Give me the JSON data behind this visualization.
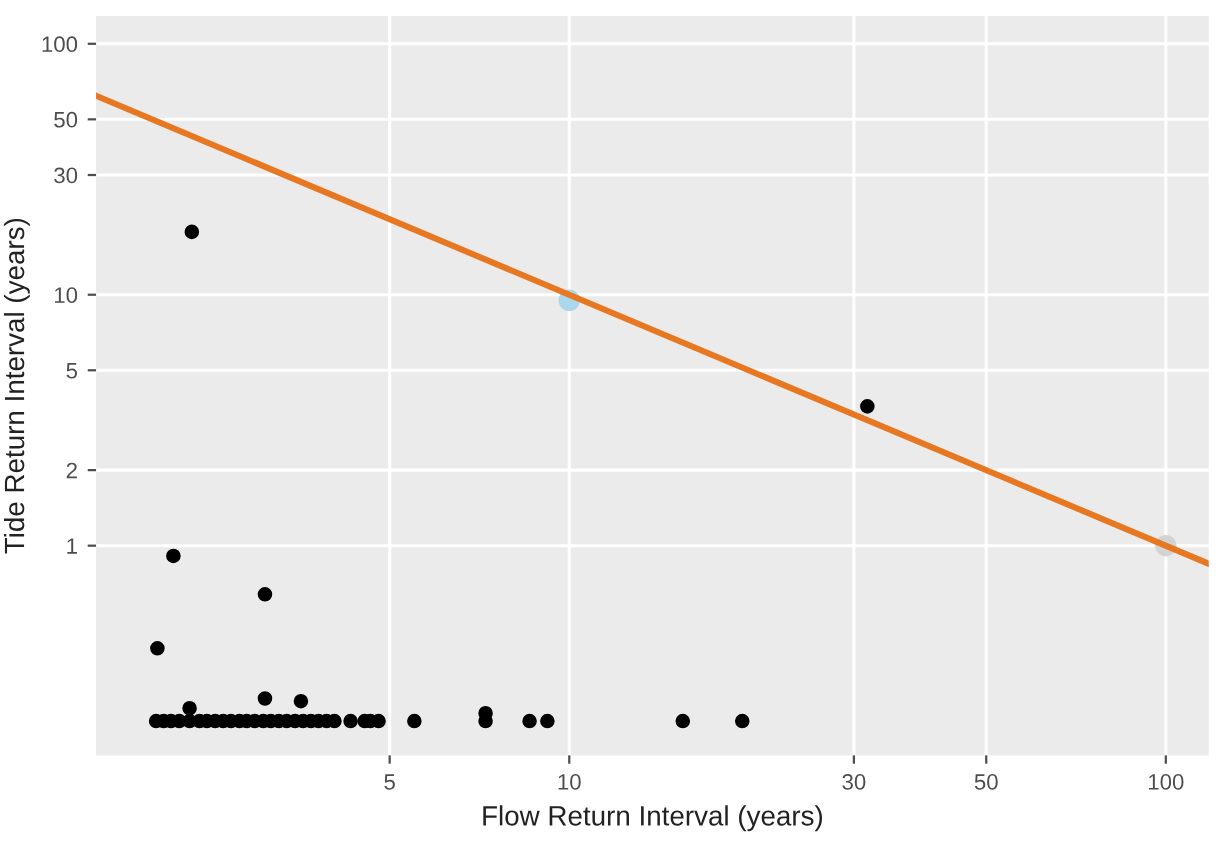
{
  "chart_data": {
    "type": "scatter",
    "xlabel": "Flow Return Interval (years)",
    "ylabel": "Tide Return Interval (years)",
    "log": "xy",
    "grid": true,
    "legend": false,
    "marker": "circle",
    "xlim": [
      1.61,
      118
    ],
    "ylim": [
      0.146,
      129
    ],
    "xticks": [
      5,
      10,
      30,
      50,
      100
    ],
    "yticks": [
      1,
      2,
      5,
      10,
      30,
      50,
      100
    ],
    "series": [
      {
        "color": "#000000",
        "x": [
          2.33,
          2.17,
          2.04,
          3.09,
          3.09,
          3.55,
          2.31,
          31.6,
          7.24,
          2.03,
          2.09,
          2.15,
          2.22,
          2.31,
          2.4,
          2.47,
          2.55,
          2.63,
          2.71,
          2.8,
          2.88,
          2.97,
          3.07,
          3.16,
          3.26,
          3.36,
          3.47,
          3.58,
          3.69,
          3.8,
          3.92,
          4.04,
          4.3,
          4.54,
          4.64,
          4.79,
          5.5,
          7.24,
          8.58,
          9.19,
          15.5,
          19.5
        ],
        "values": [
          17.8,
          0.91,
          0.39,
          0.64,
          0.246,
          0.24,
          0.225,
          3.59,
          0.215,
          0.2,
          0.2,
          0.2,
          0.2,
          0.2,
          0.2,
          0.2,
          0.2,
          0.2,
          0.2,
          0.2,
          0.2,
          0.2,
          0.2,
          0.2,
          0.2,
          0.2,
          0.2,
          0.2,
          0.2,
          0.2,
          0.2,
          0.2,
          0.2,
          0.2,
          0.2,
          0.2,
          0.2,
          0.2,
          0.2,
          0.2,
          0.2,
          0.2
        ]
      },
      {
        "color": "#a8d8ea",
        "x": [
          10
        ],
        "values": [
          9.5
        ]
      },
      {
        "color": "#d3d3d3",
        "x": [
          100
        ],
        "values": [
          1
        ]
      },
      {
        "type": "line",
        "marker": "none",
        "color": "#e87722",
        "x": [
          1.61,
          118
        ],
        "values": [
          62.1,
          0.847
        ]
      }
    ]
  }
}
